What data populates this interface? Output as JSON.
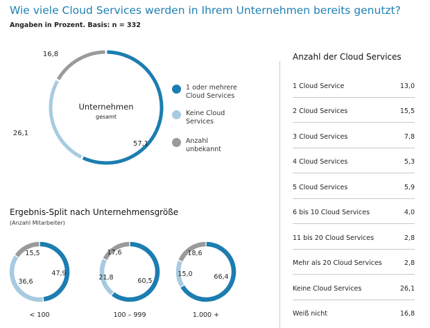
{
  "title": "Wie viele Cloud Services werden in Ihrem Unternehmen bereits genutzt?",
  "subtitle": "Angaben in Prozent. Basis: n = 332",
  "colors": {
    "blue": "#1c7db0",
    "light": "#a7cbe0",
    "gray": "#9a9a9a",
    "title": "#1f80b4"
  },
  "chart_data": [
    {
      "type": "pie",
      "title": "",
      "center_label": "Unternehmen",
      "center_sublabel": "gesamt",
      "categories": [
        "1 oder mehrere Cloud Services",
        "Keine Cloud Services",
        "Anzahl unbekannt"
      ],
      "values": [
        57.1,
        26.1,
        16.8
      ],
      "value_labels": [
        "57,1",
        "26,1",
        "16,8"
      ],
      "legend": "right",
      "legend_lines": [
        [
          "1 oder mehrere",
          "Cloud Services"
        ],
        [
          "Keine Cloud",
          "Services"
        ],
        [
          "Anzahl",
          "unbekannt"
        ]
      ]
    },
    {
      "type": "pie",
      "title": "Ergebnis-Split nach Unternehmensgröße",
      "subtitle": "(Anzahl Mitarbeiter)",
      "groups": [
        {
          "label": "< 100",
          "values": [
            47.9,
            36.6,
            15.5
          ],
          "value_labels": [
            "47,9",
            "36,6",
            "15,5"
          ]
        },
        {
          "label": "100 – 999",
          "values": [
            60.5,
            21.8,
            17.6
          ],
          "value_labels": [
            "60,5",
            "21,8",
            "17,6"
          ]
        },
        {
          "label": "1.000 +",
          "values": [
            66.4,
            15.0,
            18.6
          ],
          "value_labels": [
            "66,4",
            "15,0",
            "18,6"
          ]
        }
      ]
    },
    {
      "type": "table",
      "title": "Anzahl der Cloud Services",
      "rows": [
        {
          "label": "1 Cloud Service",
          "value": "13,0"
        },
        {
          "label": "2 Cloud Services",
          "value": "15,5"
        },
        {
          "label": "3 Cloud Services",
          "value": "7,8"
        },
        {
          "label": "4 Cloud Services",
          "value": "5,3"
        },
        {
          "label": "5 Cloud Services",
          "value": "5,9"
        },
        {
          "label": "6 bis 10 Cloud Services",
          "value": "4,0"
        },
        {
          "label": "11 bis 20 Cloud Services",
          "value": "2,8"
        },
        {
          "label": "Mehr als 20 Cloud Services",
          "value": "2,8"
        },
        {
          "label": "Keine Cloud Services",
          "value": "26,1"
        },
        {
          "label": "Weiß nicht",
          "value": "16,8"
        }
      ]
    }
  ]
}
